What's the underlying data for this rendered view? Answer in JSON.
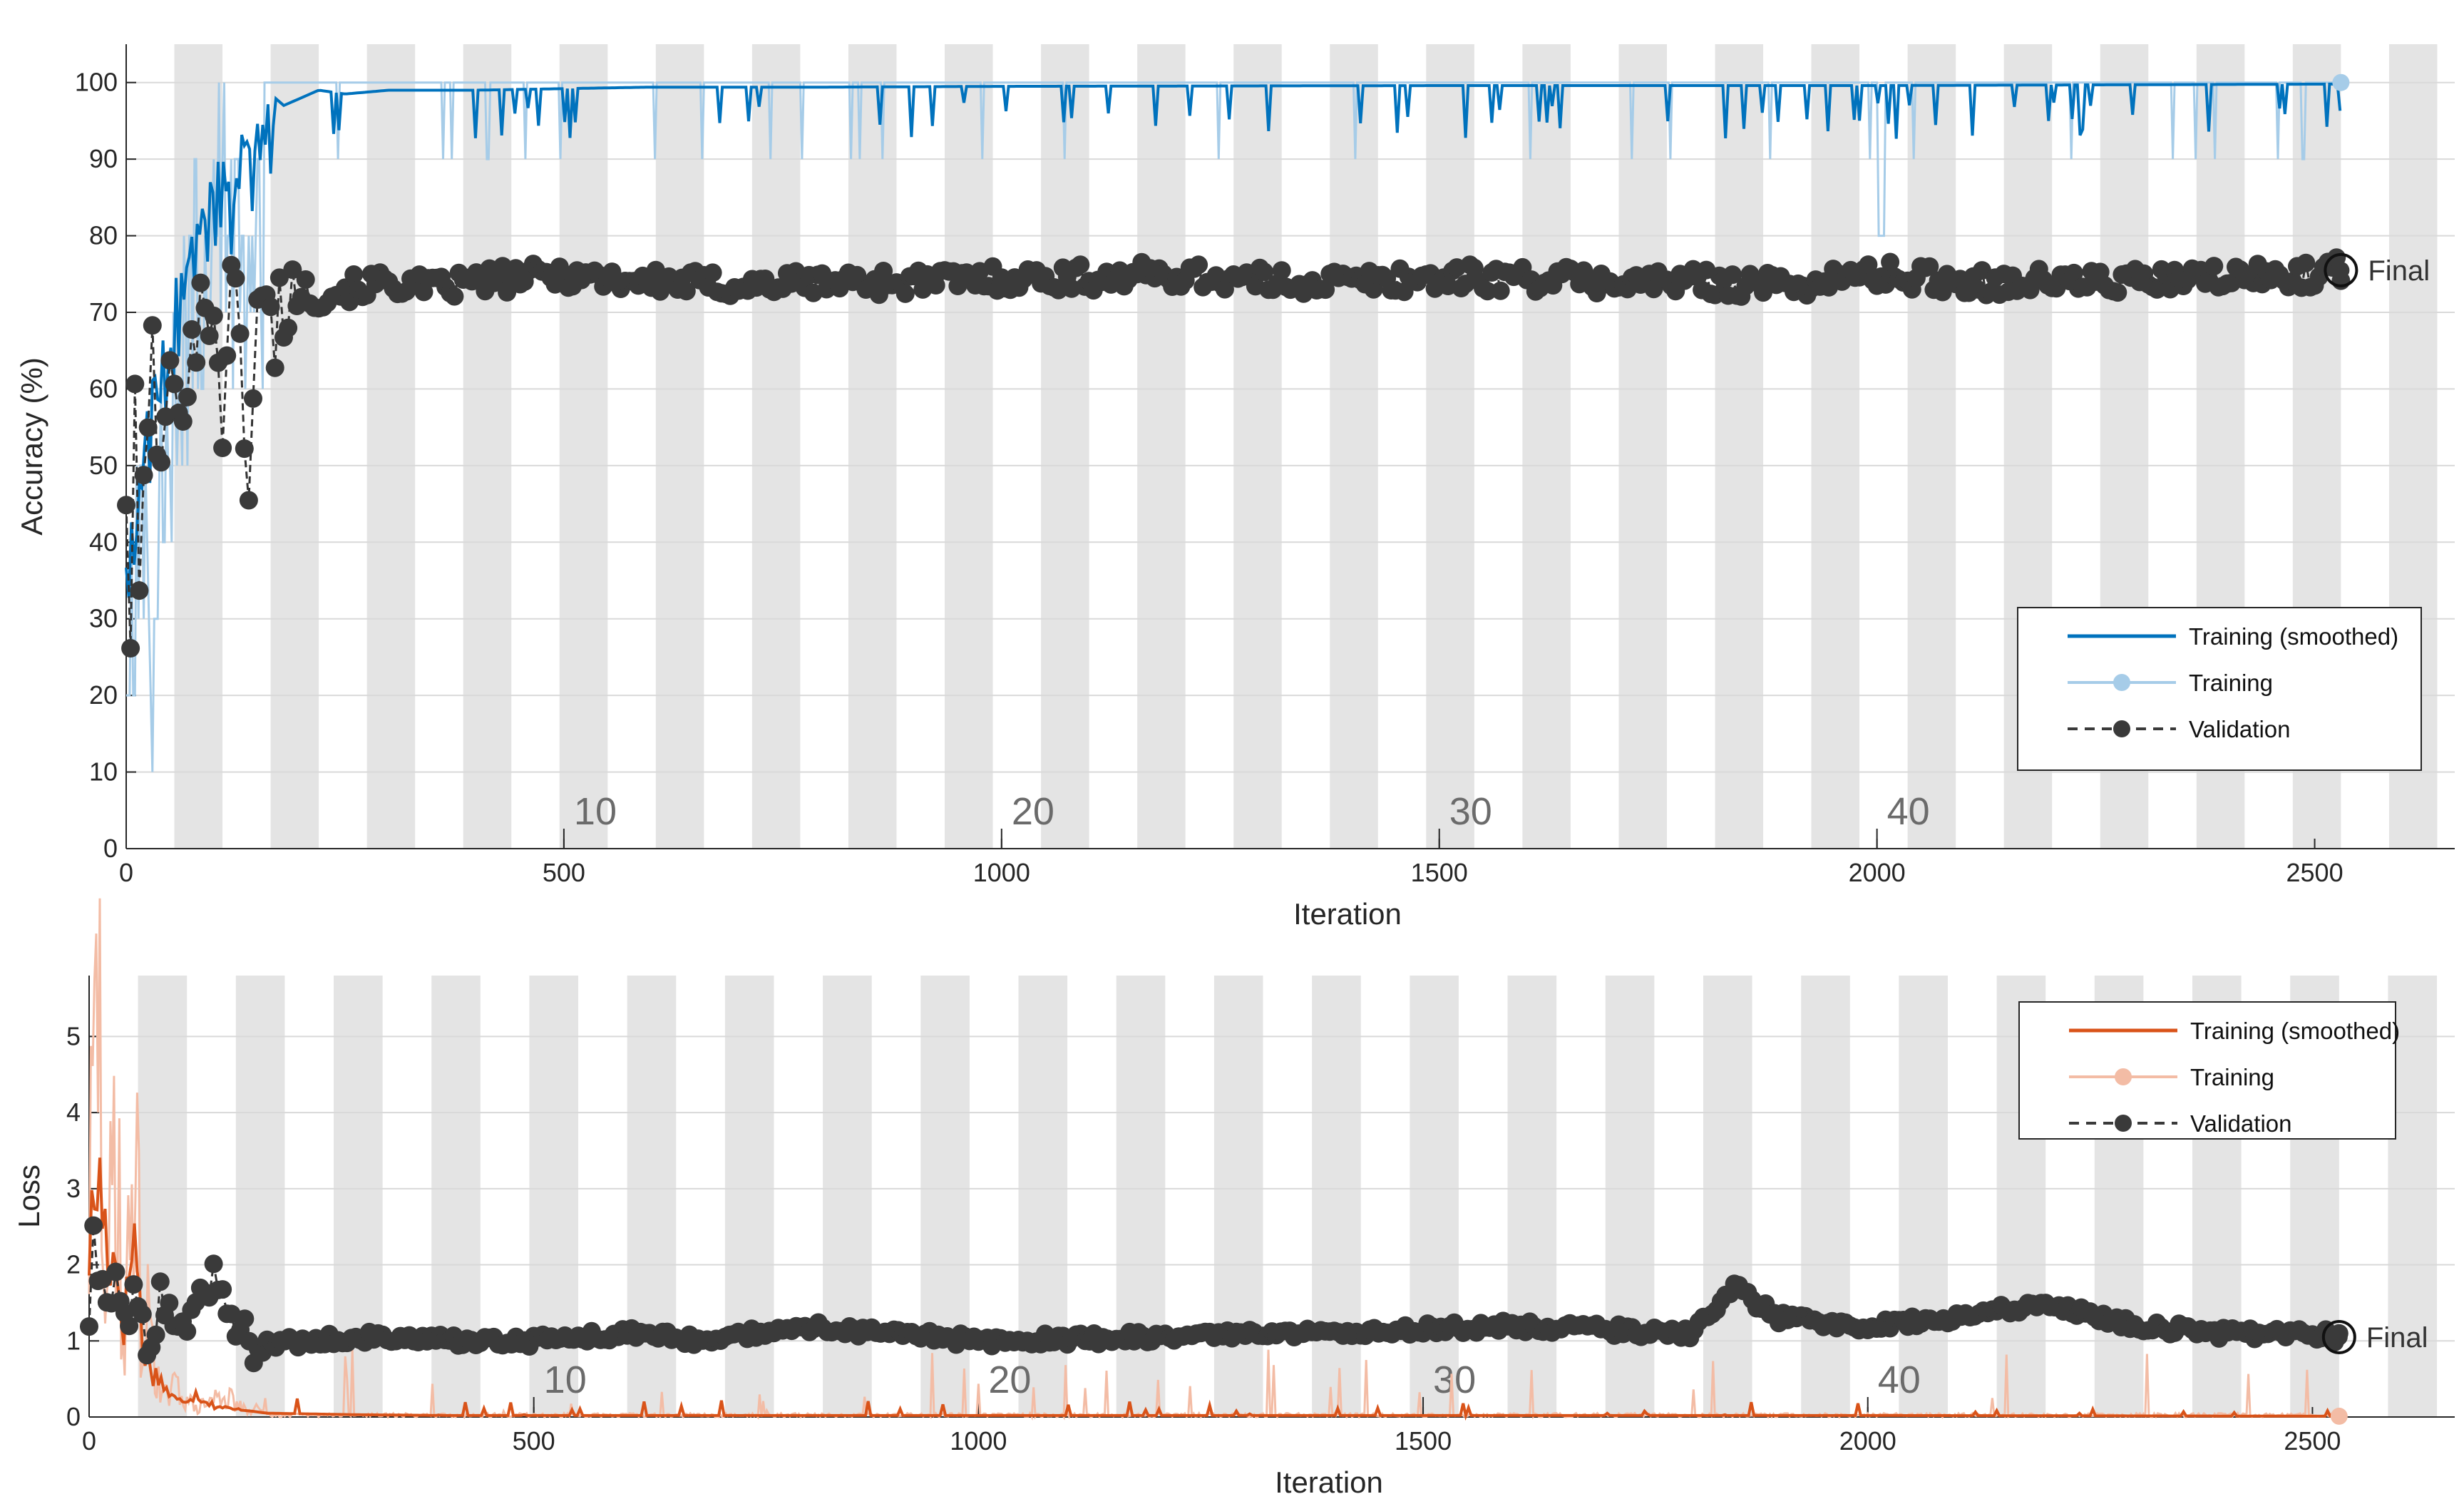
{
  "chart_data": [
    {
      "type": "line",
      "title": "",
      "xlabel": "Iteration",
      "ylabel": "Accuracy (%)",
      "xlim": [
        0,
        2660
      ],
      "ylim": [
        0,
        105
      ],
      "xticks": [
        0,
        500,
        1000,
        1500,
        2000,
        2500
      ],
      "xtick_labels": [
        "0",
        "500",
        "1000",
        "1500",
        "2000",
        "2500"
      ],
      "yticks": [
        0,
        10,
        20,
        30,
        40,
        50,
        60,
        70,
        80,
        90,
        100
      ],
      "ytick_labels": [
        "0",
        "10",
        "20",
        "30",
        "40",
        "50",
        "60",
        "70",
        "80",
        "90",
        "100"
      ],
      "epoch_markers": [
        {
          "label": "10",
          "x": 500
        },
        {
          "label": "20",
          "x": 1000
        },
        {
          "label": "30",
          "x": 1500
        },
        {
          "label": "40",
          "x": 2000
        }
      ],
      "iterations_per_epoch": 55,
      "num_epochs": 46,
      "total_iterations": 2530,
      "legend": {
        "position": "lower-right",
        "entries": [
          "Training (smoothed)",
          "Training",
          "Validation"
        ]
      },
      "final_label": "Final",
      "final_values": {
        "training": 100,
        "validation": 75.5
      },
      "series": [
        {
          "name": "Training (smoothed)",
          "color": "#0072BD",
          "x": [
            0,
            10,
            20,
            30,
            40,
            50,
            60,
            70,
            80,
            90,
            100,
            110,
            120,
            130,
            140,
            150,
            160,
            170,
            180,
            200,
            220,
            250,
            300,
            400,
            500,
            600,
            800,
            1000,
            1500,
            2000,
            2530
          ],
          "values": [
            40,
            50,
            55,
            62,
            68,
            70,
            78,
            85,
            88,
            86,
            92,
            94,
            90,
            95,
            93,
            96,
            97,
            98,
            97,
            98,
            99,
            98.5,
            99,
            99,
            99.2,
            99.4,
            99.4,
            99.5,
            99.6,
            99.6,
            99.8
          ]
        },
        {
          "name": "Training",
          "color": "#A6CCE8",
          "x": [
            0,
            10,
            20,
            30,
            40,
            50,
            60,
            70,
            80,
            90,
            100,
            120,
            140,
            160,
            200,
            300,
            500,
            1000,
            1500,
            2000,
            2530
          ],
          "values": [
            30,
            50,
            60,
            40,
            70,
            60,
            90,
            80,
            100,
            90,
            100,
            100,
            90,
            100,
            100,
            100,
            100,
            100,
            100,
            100,
            100
          ]
        },
        {
          "name": "Validation",
          "color": "#333333",
          "x": [
            0,
            5,
            10,
            15,
            20,
            25,
            30,
            35,
            40,
            45,
            50,
            55,
            60,
            70,
            80,
            90,
            100,
            110,
            120,
            130,
            140,
            150,
            160,
            170,
            180,
            200,
            220,
            250,
            300,
            350,
            400,
            450,
            500,
            600,
            700,
            800,
            900,
            1000,
            1100,
            1200,
            1300,
            1400,
            1500,
            1600,
            1700,
            1800,
            1900,
            2000,
            2100,
            2200,
            2300,
            2400,
            2500,
            2530
          ],
          "values": [
            48,
            27,
            54,
            35,
            46,
            60,
            63,
            56,
            45,
            58,
            62,
            55,
            60,
            65,
            68,
            70,
            72,
            58,
            71,
            67,
            49,
            69,
            70,
            68,
            72,
            73,
            72,
            73,
            74,
            73,
            74,
            74.5,
            75,
            74,
            73.5,
            74,
            74,
            74.5,
            74.5,
            75,
            74,
            74,
            74.5,
            74.5,
            74,
            74,
            73.5,
            75,
            74,
            74,
            74,
            74.5,
            75,
            75.5
          ]
        }
      ]
    },
    {
      "type": "line",
      "title": "",
      "xlabel": "Iteration",
      "ylabel": "Loss",
      "xlim": [
        0,
        2660
      ],
      "ylim": [
        0,
        5.8
      ],
      "xticks": [
        0,
        500,
        1000,
        1500,
        2000,
        2500
      ],
      "xtick_labels": [
        "0",
        "500",
        "1000",
        "1500",
        "2000",
        "2500"
      ],
      "yticks": [
        0,
        1,
        2,
        3,
        4,
        5
      ],
      "ytick_labels": [
        "0",
        "1",
        "2",
        "3",
        "4",
        "5"
      ],
      "epoch_markers": [
        {
          "label": "10",
          "x": 500
        },
        {
          "label": "20",
          "x": 1000
        },
        {
          "label": "30",
          "x": 1500
        },
        {
          "label": "40",
          "x": 2000
        }
      ],
      "iterations_per_epoch": 55,
      "num_epochs": 46,
      "total_iterations": 2530,
      "legend": {
        "position": "top-right",
        "entries": [
          "Training (smoothed)",
          "Training",
          "Validation"
        ]
      },
      "final_label": "Final",
      "final_values": {
        "training": 0.01,
        "validation": 1.05
      },
      "series": [
        {
          "name": "Training (smoothed)",
          "color": "#D95319",
          "x": [
            0,
            10,
            20,
            30,
            40,
            50,
            60,
            70,
            80,
            90,
            100,
            120,
            140,
            160,
            180,
            200,
            250,
            300,
            400,
            500,
            1000,
            1500,
            2000,
            2530
          ],
          "values": [
            2.2,
            3.2,
            2.3,
            2.0,
            1.2,
            2.6,
            1.0,
            0.6,
            0.5,
            0.3,
            0.2,
            0.3,
            0.15,
            0.1,
            0.08,
            0.05,
            0.04,
            0.03,
            0.02,
            0.02,
            0.02,
            0.02,
            0.02,
            0.01
          ]
        },
        {
          "name": "Training",
          "color": "#F3BCA5",
          "x": [
            0,
            10,
            20,
            30,
            40,
            50,
            60,
            70,
            80,
            100,
            120,
            150,
            180,
            200,
            300,
            500,
            1000,
            1500,
            2000,
            2530
          ],
          "values": [
            2.5,
            5.5,
            1.0,
            4.5,
            0.5,
            4.2,
            0.8,
            1.5,
            0.2,
            0.4,
            0.1,
            0.3,
            0.05,
            0.2,
            0.02,
            0.01,
            0.0,
            0.0,
            0.0,
            0.0
          ]
        },
        {
          "name": "Validation",
          "color": "#333333",
          "x": [
            0,
            5,
            10,
            15,
            20,
            30,
            40,
            50,
            60,
            70,
            80,
            90,
            100,
            120,
            140,
            150,
            160,
            180,
            200,
            250,
            300,
            400,
            500,
            600,
            700,
            800,
            900,
            1000,
            1200,
            1400,
            1600,
            1800,
            1850,
            1900,
            2000,
            2100,
            2200,
            2300,
            2400,
            2500,
            2530
          ],
          "values": [
            1.3,
            2.4,
            1.6,
            2.0,
            1.4,
            1.7,
            1.2,
            1.5,
            1.1,
            1.0,
            1.6,
            1.2,
            1.0,
            1.3,
            1.8,
            1.6,
            1.1,
            1.0,
            0.95,
            1.0,
            1.05,
            1.0,
            1.0,
            1.1,
            1.0,
            1.2,
            1.1,
            1.0,
            1.05,
            1.1,
            1.2,
            1.1,
            1.7,
            1.3,
            1.2,
            1.3,
            1.5,
            1.2,
            1.1,
            1.1,
            1.05
          ]
        }
      ]
    }
  ]
}
